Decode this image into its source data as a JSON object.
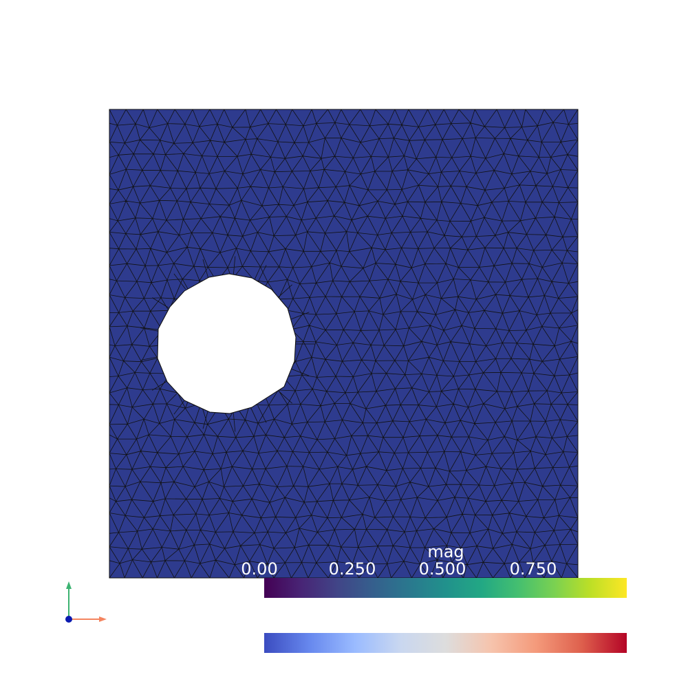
{
  "view": {
    "background_color": "#ffffff",
    "mesh_fill_color": "#2e3b8e",
    "mesh_edge_color": "#111111"
  },
  "colorbar": {
    "title": "mag",
    "ticks": [
      "0.00",
      "0.250",
      "0.500",
      "0.750"
    ],
    "primary_colormap": "viridis",
    "secondary_colormap": "coolwarm"
  },
  "orientation_axes": {
    "x_color": "#f4845f",
    "y_color": "#3cb371",
    "origin_color": "#0a1ab0"
  }
}
